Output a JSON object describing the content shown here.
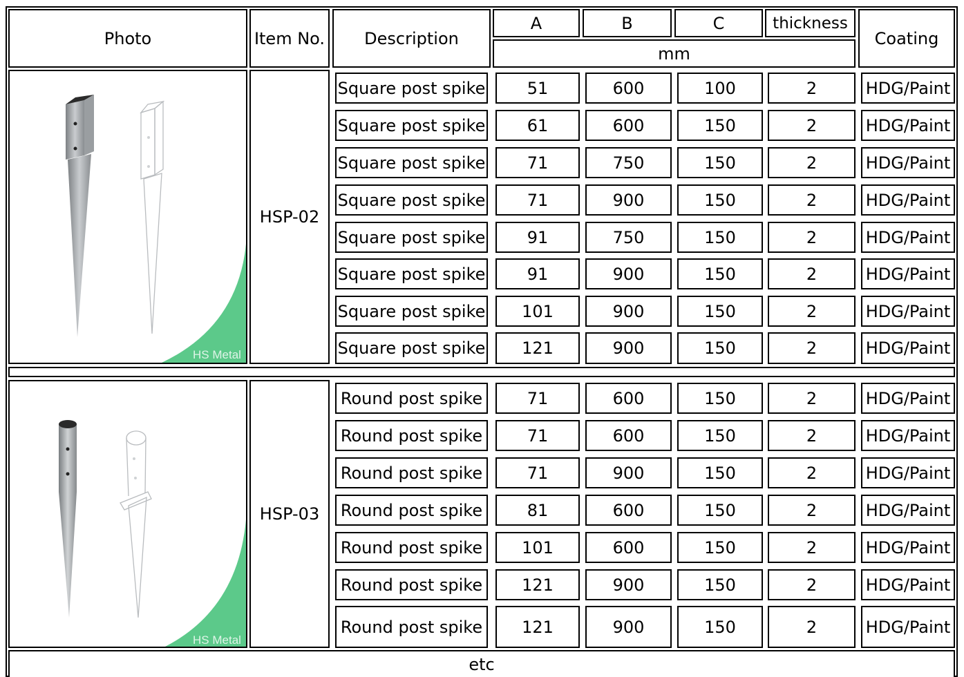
{
  "header": {
    "photo": "Photo",
    "item_no": "Item No.",
    "description": "Description",
    "a": "A",
    "b": "B",
    "c": "C",
    "thickness": "thickness",
    "unit": "mm",
    "coating": "Coating"
  },
  "groups": [
    {
      "item": "HSP-02",
      "watermark": "HS Metal",
      "rows": [
        {
          "description": "Square post spike",
          "a": "51",
          "b": "600",
          "c": "100",
          "thickness": "2",
          "coating": "HDG/Paint"
        },
        {
          "description": "Square post spike",
          "a": "61",
          "b": "600",
          "c": "150",
          "thickness": "2",
          "coating": "HDG/Paint"
        },
        {
          "description": "Square post spike",
          "a": "71",
          "b": "750",
          "c": "150",
          "thickness": "2",
          "coating": "HDG/Paint"
        },
        {
          "description": "Square post spike",
          "a": "71",
          "b": "900",
          "c": "150",
          "thickness": "2",
          "coating": "HDG/Paint"
        },
        {
          "description": "Square post spike",
          "a": "91",
          "b": "750",
          "c": "150",
          "thickness": "2",
          "coating": "HDG/Paint"
        },
        {
          "description": "Square post spike",
          "a": "91",
          "b": "900",
          "c": "150",
          "thickness": "2",
          "coating": "HDG/Paint"
        },
        {
          "description": "Square post spike",
          "a": "101",
          "b": "900",
          "c": "150",
          "thickness": "2",
          "coating": "HDG/Paint"
        },
        {
          "description": "Square post spike",
          "a": "121",
          "b": "900",
          "c": "150",
          "thickness": "2",
          "coating": "HDG/Paint"
        }
      ]
    },
    {
      "item": "HSP-03",
      "watermark": "HS Metal",
      "rows": [
        {
          "description": "Round post spike",
          "a": "71",
          "b": "600",
          "c": "150",
          "thickness": "2",
          "coating": "HDG/Paint"
        },
        {
          "description": "Round post spike",
          "a": "71",
          "b": "600",
          "c": "150",
          "thickness": "2",
          "coating": "HDG/Paint"
        },
        {
          "description": "Round post spike",
          "a": "71",
          "b": "900",
          "c": "150",
          "thickness": "2",
          "coating": "HDG/Paint"
        },
        {
          "description": "Round post spike",
          "a": "81",
          "b": "600",
          "c": "150",
          "thickness": "2",
          "coating": "HDG/Paint"
        },
        {
          "description": "Round post spike",
          "a": "101",
          "b": "600",
          "c": "150",
          "thickness": "2",
          "coating": "HDG/Paint"
        },
        {
          "description": "Round post spike",
          "a": "121",
          "b": "900",
          "c": "150",
          "thickness": "2",
          "coating": "HDG/Paint"
        },
        {
          "description": "Round post spike",
          "a": "121",
          "b": "900",
          "c": "150",
          "thickness": "2",
          "coating": "HDG/Paint"
        }
      ]
    }
  ],
  "footer": "etc",
  "colors": {
    "border": "#000000",
    "accent_green": "#5cc98a",
    "metal": "#a9adb0"
  }
}
